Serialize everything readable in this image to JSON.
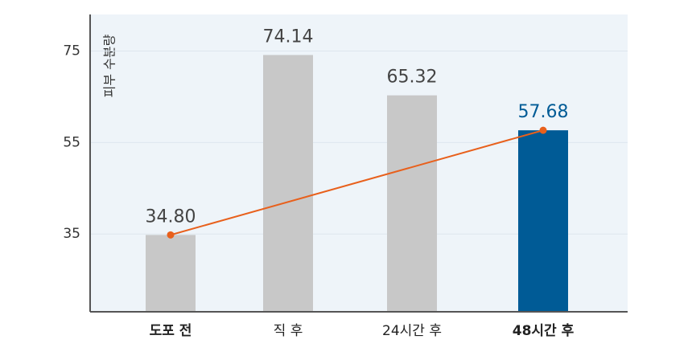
{
  "chart_data": {
    "type": "bar",
    "y_label": "피부 수분량",
    "categories": [
      "도포 전",
      "직 후",
      "24시간 후",
      "48시간 후"
    ],
    "values": [
      34.8,
      74.14,
      65.32,
      57.68
    ],
    "value_labels": [
      "34.80",
      "74.14",
      "65.32",
      "57.68"
    ],
    "colors": [
      "#c8c8c8",
      "#c8c8c8",
      "#c8c8c8",
      "#005b96"
    ],
    "value_label_colors": [
      "#444444",
      "#444444",
      "#444444",
      "#005b96"
    ],
    "category_bold": [
      true,
      false,
      false,
      true
    ],
    "trend_indices": [
      0,
      3
    ],
    "trend_color": "#e8601c",
    "ylim": [
      18,
      83
    ],
    "yticks": [
      35,
      55,
      75
    ],
    "grid": true
  }
}
